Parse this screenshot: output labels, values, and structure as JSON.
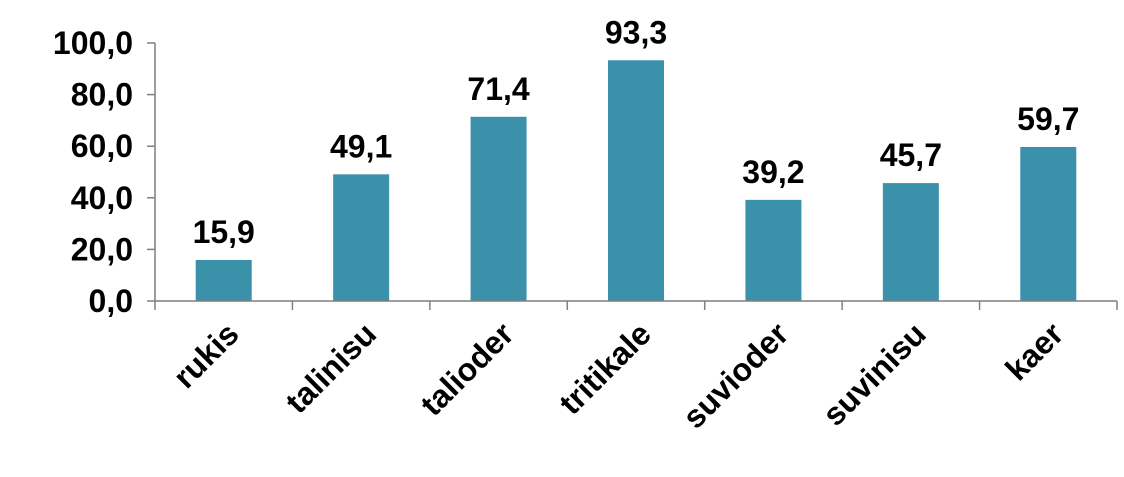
{
  "chart_data": {
    "type": "bar",
    "categories": [
      "rukis",
      "talinisu",
      "talioder",
      "tritikale",
      "suvioder",
      "suvinisu",
      "kaer"
    ],
    "values": [
      15.9,
      49.1,
      71.4,
      93.3,
      39.2,
      45.7,
      59.7
    ],
    "value_labels": [
      "15,9",
      "49,1",
      "71,4",
      "93,3",
      "39,2",
      "45,7",
      "59,7"
    ],
    "yticks": [
      0,
      20,
      40,
      60,
      80,
      100
    ],
    "ytick_labels": [
      "0,0",
      "20,0",
      "40,0",
      "60,0",
      "80,0",
      "100,0"
    ],
    "ylim": [
      0,
      100
    ],
    "grid": false,
    "bar_color": "#3b91a9",
    "axis_color": "#7f7f7f"
  }
}
